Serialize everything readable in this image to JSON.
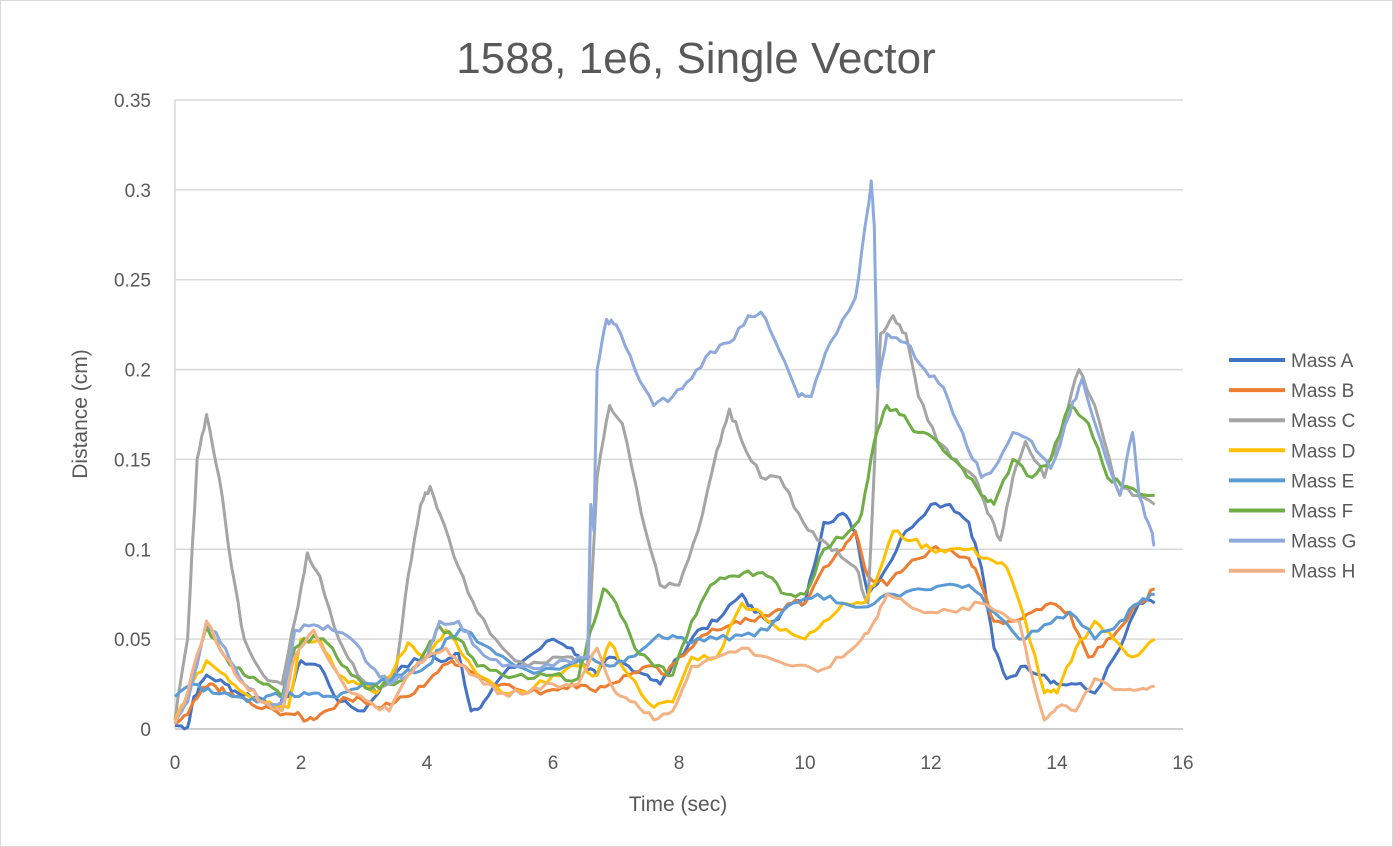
{
  "chart_data": {
    "type": "line",
    "title": "1588, 1e6, Single Vector",
    "xlabel": "Time (sec)",
    "ylabel": "Distance (cm)",
    "xlim": [
      0,
      16
    ],
    "ylim": [
      0,
      0.35
    ],
    "x_ticks": [
      "0",
      "2",
      "4",
      "6",
      "8",
      "10",
      "12",
      "14",
      "16"
    ],
    "y_ticks": [
      "0",
      "0.05",
      "0.1",
      "0.15",
      "0.2",
      "0.25",
      "0.3",
      "0.35"
    ],
    "grid": "horizontal",
    "legend_position": "right",
    "series": [
      {
        "name": "Mass A",
        "color": "#4472C4",
        "x": [
          0,
          0.2,
          0.3,
          0.5,
          0.8,
          1.0,
          1.3,
          1.6,
          1.8,
          2.0,
          2.3,
          2.6,
          3.0,
          3.3,
          3.6,
          4.0,
          4.3,
          4.5,
          4.7,
          4.9,
          5.2,
          5.6,
          6.0,
          6.3,
          6.5,
          6.7,
          6.9,
          7.2,
          7.5,
          7.7,
          8.0,
          8.3,
          8.6,
          9.0,
          9.2,
          9.5,
          9.8,
          10.0,
          10.3,
          10.6,
          10.8,
          11.0,
          11.3,
          11.6,
          12.0,
          12.3,
          12.6,
          12.8,
          13.0,
          13.2,
          13.5,
          13.8,
          14.0,
          14.3,
          14.6,
          15.0,
          15.3,
          15.55
        ],
        "y": [
          0.002,
          0.001,
          0.018,
          0.03,
          0.025,
          0.02,
          0.018,
          0.012,
          0.018,
          0.038,
          0.035,
          0.015,
          0.01,
          0.025,
          0.035,
          0.04,
          0.038,
          0.042,
          0.01,
          0.015,
          0.03,
          0.04,
          0.05,
          0.045,
          0.035,
          0.03,
          0.04,
          0.035,
          0.03,
          0.025,
          0.04,
          0.055,
          0.06,
          0.075,
          0.065,
          0.06,
          0.07,
          0.07,
          0.115,
          0.12,
          0.11,
          0.075,
          0.09,
          0.11,
          0.125,
          0.125,
          0.115,
          0.09,
          0.045,
          0.028,
          0.035,
          0.03,
          0.025,
          0.025,
          0.02,
          0.045,
          0.07,
          0.07
        ]
      },
      {
        "name": "Mass B",
        "color": "#ED7D31",
        "x": [
          0,
          0.2,
          0.4,
          0.6,
          0.8,
          1.0,
          1.3,
          1.6,
          1.9,
          2.1,
          2.3,
          2.6,
          2.9,
          3.2,
          3.5,
          3.8,
          4.1,
          4.4,
          4.6,
          4.9,
          5.2,
          5.6,
          6.0,
          6.3,
          6.6,
          6.9,
          7.2,
          7.5,
          7.8,
          8.0,
          8.3,
          8.6,
          8.9,
          9.2,
          9.5,
          9.8,
          10.0,
          10.3,
          10.6,
          10.8,
          11.0,
          11.3,
          11.6,
          12.0,
          12.3,
          12.6,
          12.8,
          13.0,
          13.3,
          13.6,
          13.9,
          14.2,
          14.5,
          14.8,
          15.1,
          15.3,
          15.55
        ],
        "y": [
          0.003,
          0.008,
          0.02,
          0.025,
          0.02,
          0.018,
          0.012,
          0.01,
          0.008,
          0.005,
          0.008,
          0.015,
          0.018,
          0.012,
          0.015,
          0.02,
          0.03,
          0.038,
          0.035,
          0.028,
          0.025,
          0.02,
          0.022,
          0.025,
          0.022,
          0.025,
          0.03,
          0.035,
          0.03,
          0.04,
          0.05,
          0.055,
          0.06,
          0.06,
          0.065,
          0.07,
          0.07,
          0.09,
          0.1,
          0.11,
          0.085,
          0.08,
          0.09,
          0.1,
          0.1,
          0.095,
          0.08,
          0.06,
          0.06,
          0.065,
          0.07,
          0.065,
          0.04,
          0.05,
          0.06,
          0.07,
          0.078
        ]
      },
      {
        "name": "Mass C",
        "color": "#A5A5A5",
        "x": [
          0,
          0.2,
          0.35,
          0.5,
          0.7,
          0.9,
          1.1,
          1.4,
          1.7,
          1.9,
          2.1,
          2.3,
          2.6,
          2.9,
          3.2,
          3.5,
          3.7,
          3.9,
          4.05,
          4.2,
          4.5,
          4.8,
          5.2,
          5.6,
          6.0,
          6.3,
          6.55,
          6.7,
          6.9,
          7.1,
          7.4,
          7.7,
          8.0,
          8.3,
          8.6,
          8.8,
          9.0,
          9.3,
          9.6,
          9.9,
          10.2,
          10.5,
          10.8,
          11.0,
          11.2,
          11.4,
          11.6,
          11.8,
          12.1,
          12.4,
          12.7,
          12.9,
          13.1,
          13.3,
          13.5,
          13.8,
          14.1,
          14.35,
          14.6,
          14.9,
          15.2,
          15.55
        ],
        "y": [
          0.005,
          0.05,
          0.15,
          0.175,
          0.14,
          0.09,
          0.05,
          0.03,
          0.025,
          0.06,
          0.098,
          0.085,
          0.05,
          0.03,
          0.02,
          0.03,
          0.085,
          0.125,
          0.135,
          0.12,
          0.09,
          0.065,
          0.045,
          0.035,
          0.04,
          0.04,
          0.035,
          0.14,
          0.18,
          0.17,
          0.12,
          0.08,
          0.08,
          0.11,
          0.155,
          0.178,
          0.16,
          0.14,
          0.14,
          0.12,
          0.105,
          0.1,
          0.09,
          0.07,
          0.22,
          0.23,
          0.22,
          0.185,
          0.16,
          0.15,
          0.14,
          0.12,
          0.105,
          0.14,
          0.16,
          0.14,
          0.17,
          0.2,
          0.18,
          0.14,
          0.13,
          0.125
        ]
      },
      {
        "name": "Mass D",
        "color": "#FFC000",
        "x": [
          0,
          0.2,
          0.5,
          0.8,
          1.1,
          1.5,
          1.8,
          2.0,
          2.3,
          2.6,
          2.9,
          3.2,
          3.5,
          3.7,
          4.0,
          4.3,
          4.5,
          4.8,
          5.2,
          5.6,
          6.0,
          6.4,
          6.7,
          6.9,
          7.2,
          7.6,
          7.9,
          8.2,
          8.6,
          9.0,
          9.3,
          9.6,
          10.0,
          10.3,
          10.6,
          10.9,
          11.1,
          11.4,
          11.7,
          12.0,
          12.3,
          12.6,
          12.9,
          13.2,
          13.5,
          13.8,
          14.0,
          14.3,
          14.6,
          14.9,
          15.2,
          15.55
        ],
        "y": [
          0.005,
          0.02,
          0.038,
          0.03,
          0.02,
          0.015,
          0.012,
          0.05,
          0.05,
          0.03,
          0.025,
          0.02,
          0.035,
          0.048,
          0.04,
          0.055,
          0.045,
          0.03,
          0.02,
          0.02,
          0.03,
          0.035,
          0.03,
          0.048,
          0.03,
          0.012,
          0.015,
          0.04,
          0.04,
          0.07,
          0.065,
          0.055,
          0.05,
          0.06,
          0.07,
          0.07,
          0.08,
          0.11,
          0.105,
          0.1,
          0.1,
          0.1,
          0.095,
          0.09,
          0.06,
          0.02,
          0.02,
          0.045,
          0.06,
          0.05,
          0.04,
          0.05
        ]
      },
      {
        "name": "Mass E",
        "color": "#5B9BD5",
        "x": [
          0,
          0.3,
          0.6,
          1.0,
          1.3,
          1.6,
          1.9,
          2.2,
          2.5,
          2.8,
          3.2,
          3.6,
          4.0,
          4.3,
          4.6,
          5.0,
          5.4,
          5.8,
          6.2,
          6.6,
          6.9,
          7.2,
          7.6,
          7.9,
          8.2,
          8.6,
          9.0,
          9.4,
          9.8,
          10.2,
          10.6,
          11.0,
          11.4,
          11.8,
          12.2,
          12.6,
          13.0,
          13.4,
          13.8,
          14.2,
          14.6,
          15.0,
          15.3,
          15.55
        ],
        "y": [
          0.018,
          0.025,
          0.02,
          0.018,
          0.015,
          0.02,
          0.018,
          0.02,
          0.018,
          0.022,
          0.025,
          0.03,
          0.035,
          0.05,
          0.055,
          0.045,
          0.035,
          0.032,
          0.035,
          0.04,
          0.035,
          0.04,
          0.05,
          0.052,
          0.048,
          0.05,
          0.052,
          0.055,
          0.07,
          0.075,
          0.07,
          0.068,
          0.075,
          0.078,
          0.08,
          0.08,
          0.065,
          0.05,
          0.058,
          0.065,
          0.05,
          0.06,
          0.07,
          0.075
        ]
      },
      {
        "name": "Mass F",
        "color": "#70AD47",
        "x": [
          0,
          0.2,
          0.5,
          0.8,
          1.1,
          1.4,
          1.7,
          1.9,
          2.2,
          2.5,
          2.8,
          3.1,
          3.4,
          3.7,
          4.0,
          4.2,
          4.5,
          4.8,
          5.2,
          5.6,
          6.0,
          6.4,
          6.6,
          6.8,
          7.0,
          7.3,
          7.6,
          7.9,
          8.2,
          8.5,
          8.8,
          9.1,
          9.4,
          9.7,
          10.0,
          10.3,
          10.7,
          10.9,
          11.1,
          11.3,
          11.5,
          11.8,
          12.1,
          12.5,
          12.8,
          13.0,
          13.3,
          13.6,
          13.9,
          14.2,
          14.5,
          14.8,
          15.1,
          15.55
        ],
        "y": [
          0.003,
          0.02,
          0.057,
          0.04,
          0.03,
          0.025,
          0.018,
          0.045,
          0.052,
          0.045,
          0.03,
          0.022,
          0.025,
          0.03,
          0.045,
          0.057,
          0.05,
          0.035,
          0.03,
          0.028,
          0.03,
          0.028,
          0.055,
          0.078,
          0.07,
          0.045,
          0.035,
          0.03,
          0.06,
          0.08,
          0.085,
          0.088,
          0.085,
          0.075,
          0.075,
          0.1,
          0.11,
          0.12,
          0.16,
          0.18,
          0.175,
          0.165,
          0.16,
          0.145,
          0.13,
          0.125,
          0.15,
          0.14,
          0.15,
          0.18,
          0.17,
          0.14,
          0.135,
          0.13
        ]
      },
      {
        "name": "Mass G",
        "color": "#8EA9DB",
        "x": [
          0,
          0.2,
          0.5,
          0.8,
          1.1,
          1.4,
          1.7,
          1.9,
          2.2,
          2.5,
          2.8,
          3.1,
          3.4,
          3.7,
          4.0,
          4.2,
          4.5,
          4.8,
          5.2,
          5.6,
          6.0,
          6.4,
          6.55,
          6.6,
          6.65,
          6.7,
          6.85,
          7.0,
          7.3,
          7.6,
          7.9,
          8.2,
          8.5,
          8.8,
          9.1,
          9.3,
          9.6,
          9.9,
          10.1,
          10.4,
          10.8,
          11.0,
          11.05,
          11.1,
          11.15,
          11.3,
          11.6,
          11.9,
          12.2,
          12.5,
          12.8,
          13.0,
          13.3,
          13.6,
          13.9,
          14.2,
          14.4,
          14.7,
          15.0,
          15.2,
          15.3,
          15.5,
          15.55
        ],
        "y": [
          0.003,
          0.015,
          0.06,
          0.045,
          0.025,
          0.015,
          0.015,
          0.055,
          0.058,
          0.055,
          0.05,
          0.035,
          0.025,
          0.03,
          0.04,
          0.06,
          0.06,
          0.045,
          0.035,
          0.035,
          0.035,
          0.04,
          0.04,
          0.125,
          0.11,
          0.2,
          0.228,
          0.225,
          0.2,
          0.18,
          0.185,
          0.195,
          0.21,
          0.215,
          0.23,
          0.232,
          0.21,
          0.185,
          0.185,
          0.215,
          0.24,
          0.29,
          0.305,
          0.28,
          0.19,
          0.22,
          0.215,
          0.2,
          0.19,
          0.165,
          0.14,
          0.145,
          0.165,
          0.16,
          0.145,
          0.175,
          0.195,
          0.16,
          0.13,
          0.165,
          0.13,
          0.11,
          0.102
        ]
      },
      {
        "name": "Mass H",
        "color": "#F4B183",
        "x": [
          0,
          0.2,
          0.5,
          0.8,
          1.1,
          1.4,
          1.7,
          1.9,
          2.2,
          2.5,
          2.8,
          3.1,
          3.4,
          3.7,
          4.0,
          4.3,
          4.6,
          4.9,
          5.2,
          5.6,
          6.0,
          6.4,
          6.7,
          7.0,
          7.3,
          7.6,
          7.9,
          8.2,
          8.6,
          9.0,
          9.4,
          9.8,
          10.2,
          10.6,
          10.9,
          11.1,
          11.3,
          11.6,
          12.0,
          12.4,
          12.8,
          13.1,
          13.4,
          13.6,
          13.8,
          14.0,
          14.3,
          14.6,
          15.0,
          15.3,
          15.55
        ],
        "y": [
          0.003,
          0.02,
          0.06,
          0.04,
          0.025,
          0.015,
          0.01,
          0.04,
          0.055,
          0.035,
          0.02,
          0.015,
          0.01,
          0.03,
          0.04,
          0.045,
          0.035,
          0.025,
          0.02,
          0.02,
          0.025,
          0.025,
          0.045,
          0.02,
          0.015,
          0.005,
          0.01,
          0.035,
          0.04,
          0.045,
          0.04,
          0.035,
          0.032,
          0.04,
          0.05,
          0.06,
          0.075,
          0.07,
          0.065,
          0.065,
          0.07,
          0.065,
          0.06,
          0.03,
          0.005,
          0.012,
          0.01,
          0.028,
          0.022,
          0.022,
          0.024
        ]
      }
    ]
  }
}
